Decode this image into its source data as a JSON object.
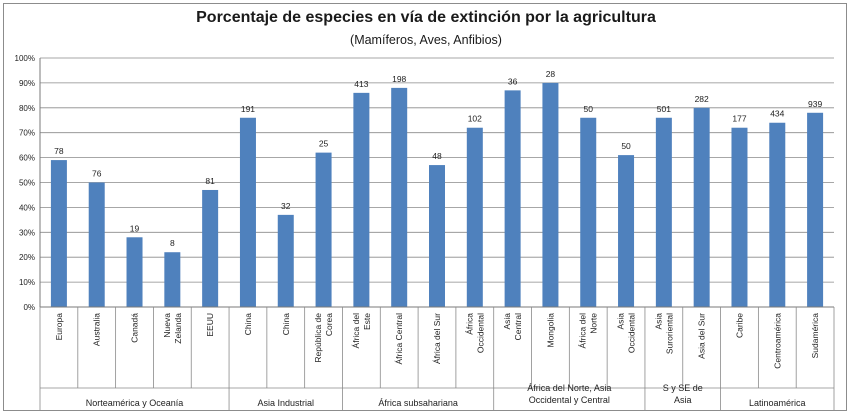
{
  "chart_data": {
    "type": "bar",
    "title": "Porcentaje de especies en vía de extinción por la agricultura",
    "subtitle": "(Mamíferos, Aves, Anfibios)",
    "ylim": [
      0,
      100
    ],
    "yticks": [
      "0%",
      "10%",
      "20%",
      "30%",
      "40%",
      "50%",
      "60%",
      "70%",
      "80%",
      "90%",
      "100%"
    ],
    "grid": true,
    "bar_color": "#4f81bd",
    "categories": [
      "Europa",
      "Australia",
      "Canadá",
      "Nueva\nZelanda",
      "EEUU",
      "China",
      "China",
      "República de\nCorea",
      "África del\nEste",
      "África Central",
      "África del Sur",
      "África\nOccidental",
      "Asia\nCentral",
      "Mongolia",
      "África del\nNorte",
      "Asia\nOccidental",
      "Asia\nSuroriental",
      "Asia del Sur",
      "Caribe",
      "Centroamérica",
      "Sudamérica"
    ],
    "values": [
      59,
      50,
      28,
      22,
      47,
      76,
      37,
      62,
      86,
      88,
      57,
      72,
      87,
      90,
      76,
      61,
      76,
      80,
      72,
      74,
      78
    ],
    "data_labels": [
      "78",
      "76",
      "19",
      "8",
      "81",
      "191",
      "32",
      "25",
      "413",
      "198",
      "48",
      "102",
      "36",
      "28",
      "50",
      "50",
      "501",
      "282",
      "177",
      "434",
      "939"
    ],
    "groups": [
      {
        "label": "Norteamérica y Oceanía",
        "start": 0,
        "end": 4
      },
      {
        "label": "Asia Industrial",
        "start": 5,
        "end": 7
      },
      {
        "label": "África subsahariana",
        "start": 8,
        "end": 11
      },
      {
        "label": "África del Norte, Asia\nOccidental y Central",
        "start": 12,
        "end": 15
      },
      {
        "label": "S y SE de\nAsia",
        "start": 16,
        "end": 17
      },
      {
        "label": "Latinoamérica",
        "start": 18,
        "end": 20
      }
    ]
  }
}
